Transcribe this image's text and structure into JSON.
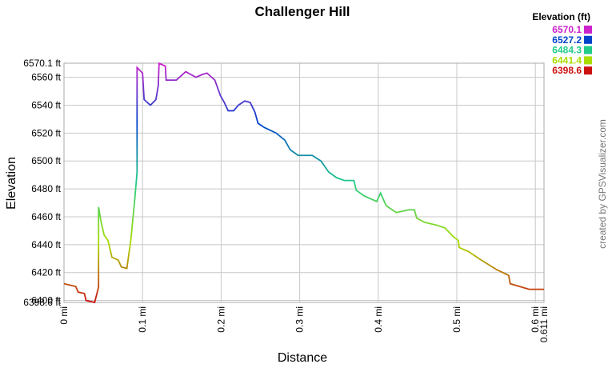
{
  "chart_data": {
    "type": "line",
    "title": "Challenger Hill",
    "x_label": "Distance",
    "y_label": "Elevation",
    "credit": "created by GPSVisualizer.com",
    "legend_title": "Elevation (ft)",
    "legend_position": "top-right",
    "color_scale": [
      {
        "value": 6570.1,
        "color": "#cc22cc"
      },
      {
        "value": 6527.2,
        "color": "#0044cc"
      },
      {
        "value": 6484.3,
        "color": "#22cc88"
      },
      {
        "value": 6441.4,
        "color": "#aadd00"
      },
      {
        "value": 6398.6,
        "color": "#cc1111"
      }
    ],
    "x": [
      0,
      0.015,
      0.018,
      0.026,
      0.028,
      0.039,
      0.044,
      0.044,
      0.044,
      0.047,
      0.051,
      0.056,
      0.061,
      0.069,
      0.073,
      0.08,
      0.085,
      0.09,
      0.093,
      0.093,
      0.093,
      0.1,
      0.102,
      0.11,
      0.117,
      0.12,
      0.121,
      0.129,
      0.13,
      0.143,
      0.155,
      0.168,
      0.176,
      0.182,
      0.192,
      0.199,
      0.204,
      0.209,
      0.216,
      0.222,
      0.23,
      0.237,
      0.243,
      0.247,
      0.255,
      0.27,
      0.281,
      0.288,
      0.298,
      0.316,
      0.327,
      0.337,
      0.347,
      0.357,
      0.369,
      0.372,
      0.382,
      0.398,
      0.403,
      0.41,
      0.423,
      0.439,
      0.446,
      0.449,
      0.459,
      0.474,
      0.485,
      0.495,
      0.502,
      0.503,
      0.515,
      0.531,
      0.551,
      0.566,
      0.568,
      0.592,
      0.611
    ],
    "values": [
      6412,
      6410,
      6406,
      6405,
      6400,
      6398.6,
      6409.5,
      6440,
      6467,
      6457,
      6447,
      6443,
      6431,
      6429,
      6424,
      6423,
      6443,
      6472,
      6492,
      6544,
      6567,
      6563,
      6544,
      6540,
      6544,
      6554,
      6570,
      6568,
      6558,
      6558,
      6564,
      6560,
      6562,
      6563,
      6558,
      6547,
      6542,
      6536,
      6536,
      6540,
      6543,
      6542,
      6535,
      6527,
      6524,
      6520,
      6515,
      6508,
      6504,
      6504,
      6500,
      6492,
      6488,
      6486,
      6486,
      6479,
      6475,
      6471,
      6477,
      6468,
      6463,
      6465,
      6465,
      6459,
      6456,
      6454,
      6452,
      6446,
      6443,
      6438,
      6435,
      6429,
      6422,
      6418,
      6412,
      6408,
      6408
    ],
    "xlim": [
      0,
      0.611
    ],
    "xticks": [
      {
        "value": 0,
        "label": "0 mi"
      },
      {
        "value": 0.1,
        "label": "0.1 mi"
      },
      {
        "value": 0.2,
        "label": "0.2 mi"
      },
      {
        "value": 0.3,
        "label": "0.3 mi"
      },
      {
        "value": 0.4,
        "label": "0.4 mi"
      },
      {
        "value": 0.5,
        "label": "0.5 mi"
      },
      {
        "value": 0.6,
        "label": "0.6 mi"
      },
      {
        "value": 0.611,
        "label": "0.611 mi"
      }
    ],
    "ylim": [
      6398.6,
      6570.1
    ],
    "yticks": [
      {
        "value": 6398.6,
        "label": "6398.6 ft"
      },
      {
        "value": 6400,
        "label": "6400 ft"
      },
      {
        "value": 6420,
        "label": "6420 ft"
      },
      {
        "value": 6440,
        "label": "6440 ft"
      },
      {
        "value": 6460,
        "label": "6460 ft"
      },
      {
        "value": 6480,
        "label": "6480 ft"
      },
      {
        "value": 6500,
        "label": "6500 ft"
      },
      {
        "value": 6520,
        "label": "6520 ft"
      },
      {
        "value": 6540,
        "label": "6540 ft"
      },
      {
        "value": 6560,
        "label": "6560 ft"
      },
      {
        "value": 6570.1,
        "label": "6570.1 ft"
      }
    ],
    "grid": true
  }
}
